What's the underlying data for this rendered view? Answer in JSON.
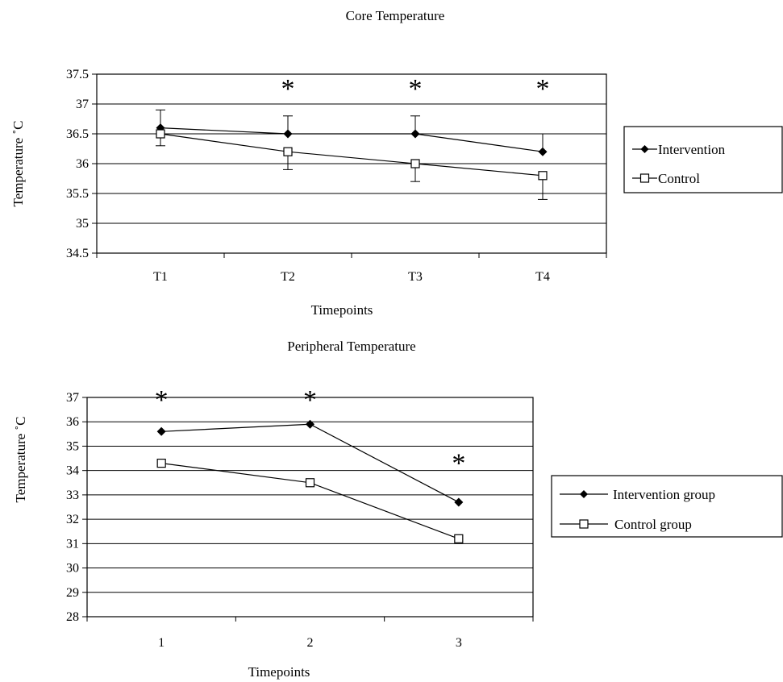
{
  "chart_data": [
    {
      "type": "line",
      "title": "Core Temperature",
      "xlabel": "Timepoints",
      "ylabel": "Temperature ˚C",
      "categories": [
        "T1",
        "T2",
        "T3",
        "T4"
      ],
      "yticks": [
        "34.5",
        "35",
        "35.5",
        "36",
        "36.5",
        "37",
        "37.5"
      ],
      "ylim": [
        34.5,
        37.5
      ],
      "grid": true,
      "legend_position": "right",
      "series": [
        {
          "name": "Intervention",
          "marker": "filled-diamond",
          "values": [
            36.6,
            36.5,
            36.5,
            36.2
          ],
          "error_up": [
            0.3,
            0.3,
            0.3,
            0.3
          ],
          "error_down": [
            0,
            0,
            0,
            0
          ]
        },
        {
          "name": "Control",
          "marker": "open-square",
          "values": [
            36.5,
            36.2,
            36.0,
            35.8
          ],
          "error_up": [
            0,
            0,
            0,
            0
          ],
          "error_down": [
            0.2,
            0.3,
            0.3,
            0.4
          ]
        }
      ],
      "annotations": [
        {
          "text": "*",
          "category": "T2",
          "y": 37.3
        },
        {
          "text": "*",
          "category": "T3",
          "y": 37.3
        },
        {
          "text": "*",
          "category": "T4",
          "y": 37.3
        }
      ]
    },
    {
      "type": "line",
      "title": "Peripheral Temperature",
      "xlabel": "Timepoints",
      "ylabel": "Temperature ˚C",
      "categories": [
        "1",
        "2",
        "3"
      ],
      "yticks": [
        "28",
        "29",
        "30",
        "31",
        "32",
        "33",
        "34",
        "35",
        "36",
        "37"
      ],
      "ylim": [
        28,
        37
      ],
      "grid": true,
      "legend_position": "right",
      "series": [
        {
          "name": "Intervention group",
          "marker": "filled-diamond",
          "values": [
            35.6,
            35.9,
            32.7
          ]
        },
        {
          "name": "Control group",
          "marker": "open-square",
          "values": [
            34.3,
            33.5,
            31.2
          ]
        }
      ],
      "annotations": [
        {
          "text": "*",
          "category": "1",
          "y": 37.0
        },
        {
          "text": "*",
          "category": "2",
          "y": 37.0
        },
        {
          "text": "*",
          "category": "3",
          "y": 34.4
        }
      ]
    }
  ]
}
